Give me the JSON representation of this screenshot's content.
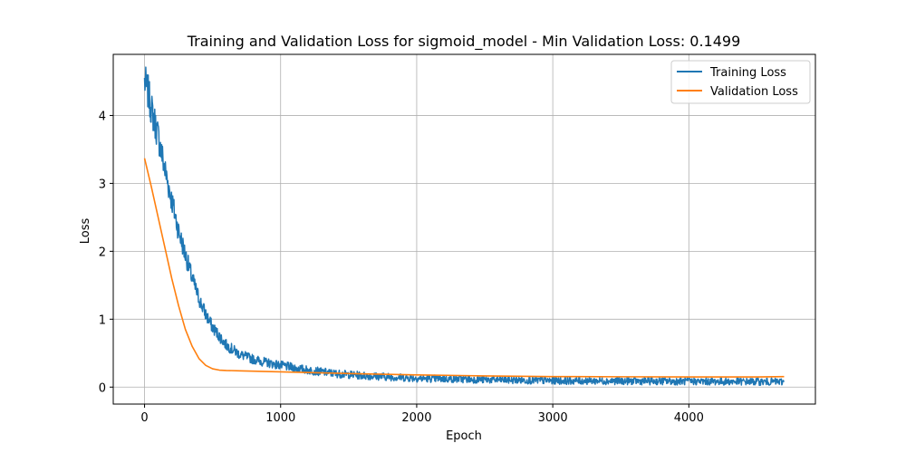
{
  "chart_data": {
    "type": "line",
    "title": "Training and Validation Loss for sigmoid_model - Min Validation Loss: 0.1499",
    "xlabel": "Epoch",
    "ylabel": "Loss",
    "xlim": [
      -230,
      4930
    ],
    "ylim": [
      -0.25,
      4.9
    ],
    "xticks": [
      0,
      1000,
      2000,
      3000,
      4000
    ],
    "yticks": [
      0,
      1,
      2,
      3,
      4
    ],
    "grid": true,
    "legend_position": "upper right",
    "series": [
      {
        "name": "Training Loss",
        "color": "#1f77b4",
        "noisy": true,
        "x": [
          0,
          25,
          50,
          100,
          150,
          200,
          250,
          300,
          350,
          400,
          450,
          500,
          600,
          700,
          800,
          900,
          1000,
          1200,
          1400,
          1600,
          1800,
          2000,
          2500,
          3000,
          3500,
          4000,
          4500,
          4700
        ],
        "y": [
          4.5,
          4.35,
          4.1,
          3.7,
          3.2,
          2.75,
          2.3,
          1.95,
          1.6,
          1.3,
          1.07,
          0.88,
          0.62,
          0.48,
          0.41,
          0.36,
          0.32,
          0.25,
          0.2,
          0.17,
          0.15,
          0.13,
          0.11,
          0.095,
          0.09,
          0.085,
          0.08,
          0.078
        ]
      },
      {
        "name": "Validation Loss",
        "color": "#ff7f0e",
        "noisy": false,
        "x": [
          0,
          50,
          100,
          150,
          200,
          250,
          300,
          350,
          400,
          450,
          500,
          550,
          600,
          700,
          800,
          1000,
          1200,
          1500,
          2000,
          2500,
          3000,
          3500,
          4000,
          4500,
          4700
        ],
        "y": [
          3.37,
          2.95,
          2.5,
          2.05,
          1.6,
          1.2,
          0.85,
          0.6,
          0.42,
          0.32,
          0.27,
          0.25,
          0.245,
          0.24,
          0.235,
          0.225,
          0.215,
          0.2,
          0.18,
          0.165,
          0.155,
          0.152,
          0.15,
          0.15,
          0.155
        ]
      }
    ]
  }
}
